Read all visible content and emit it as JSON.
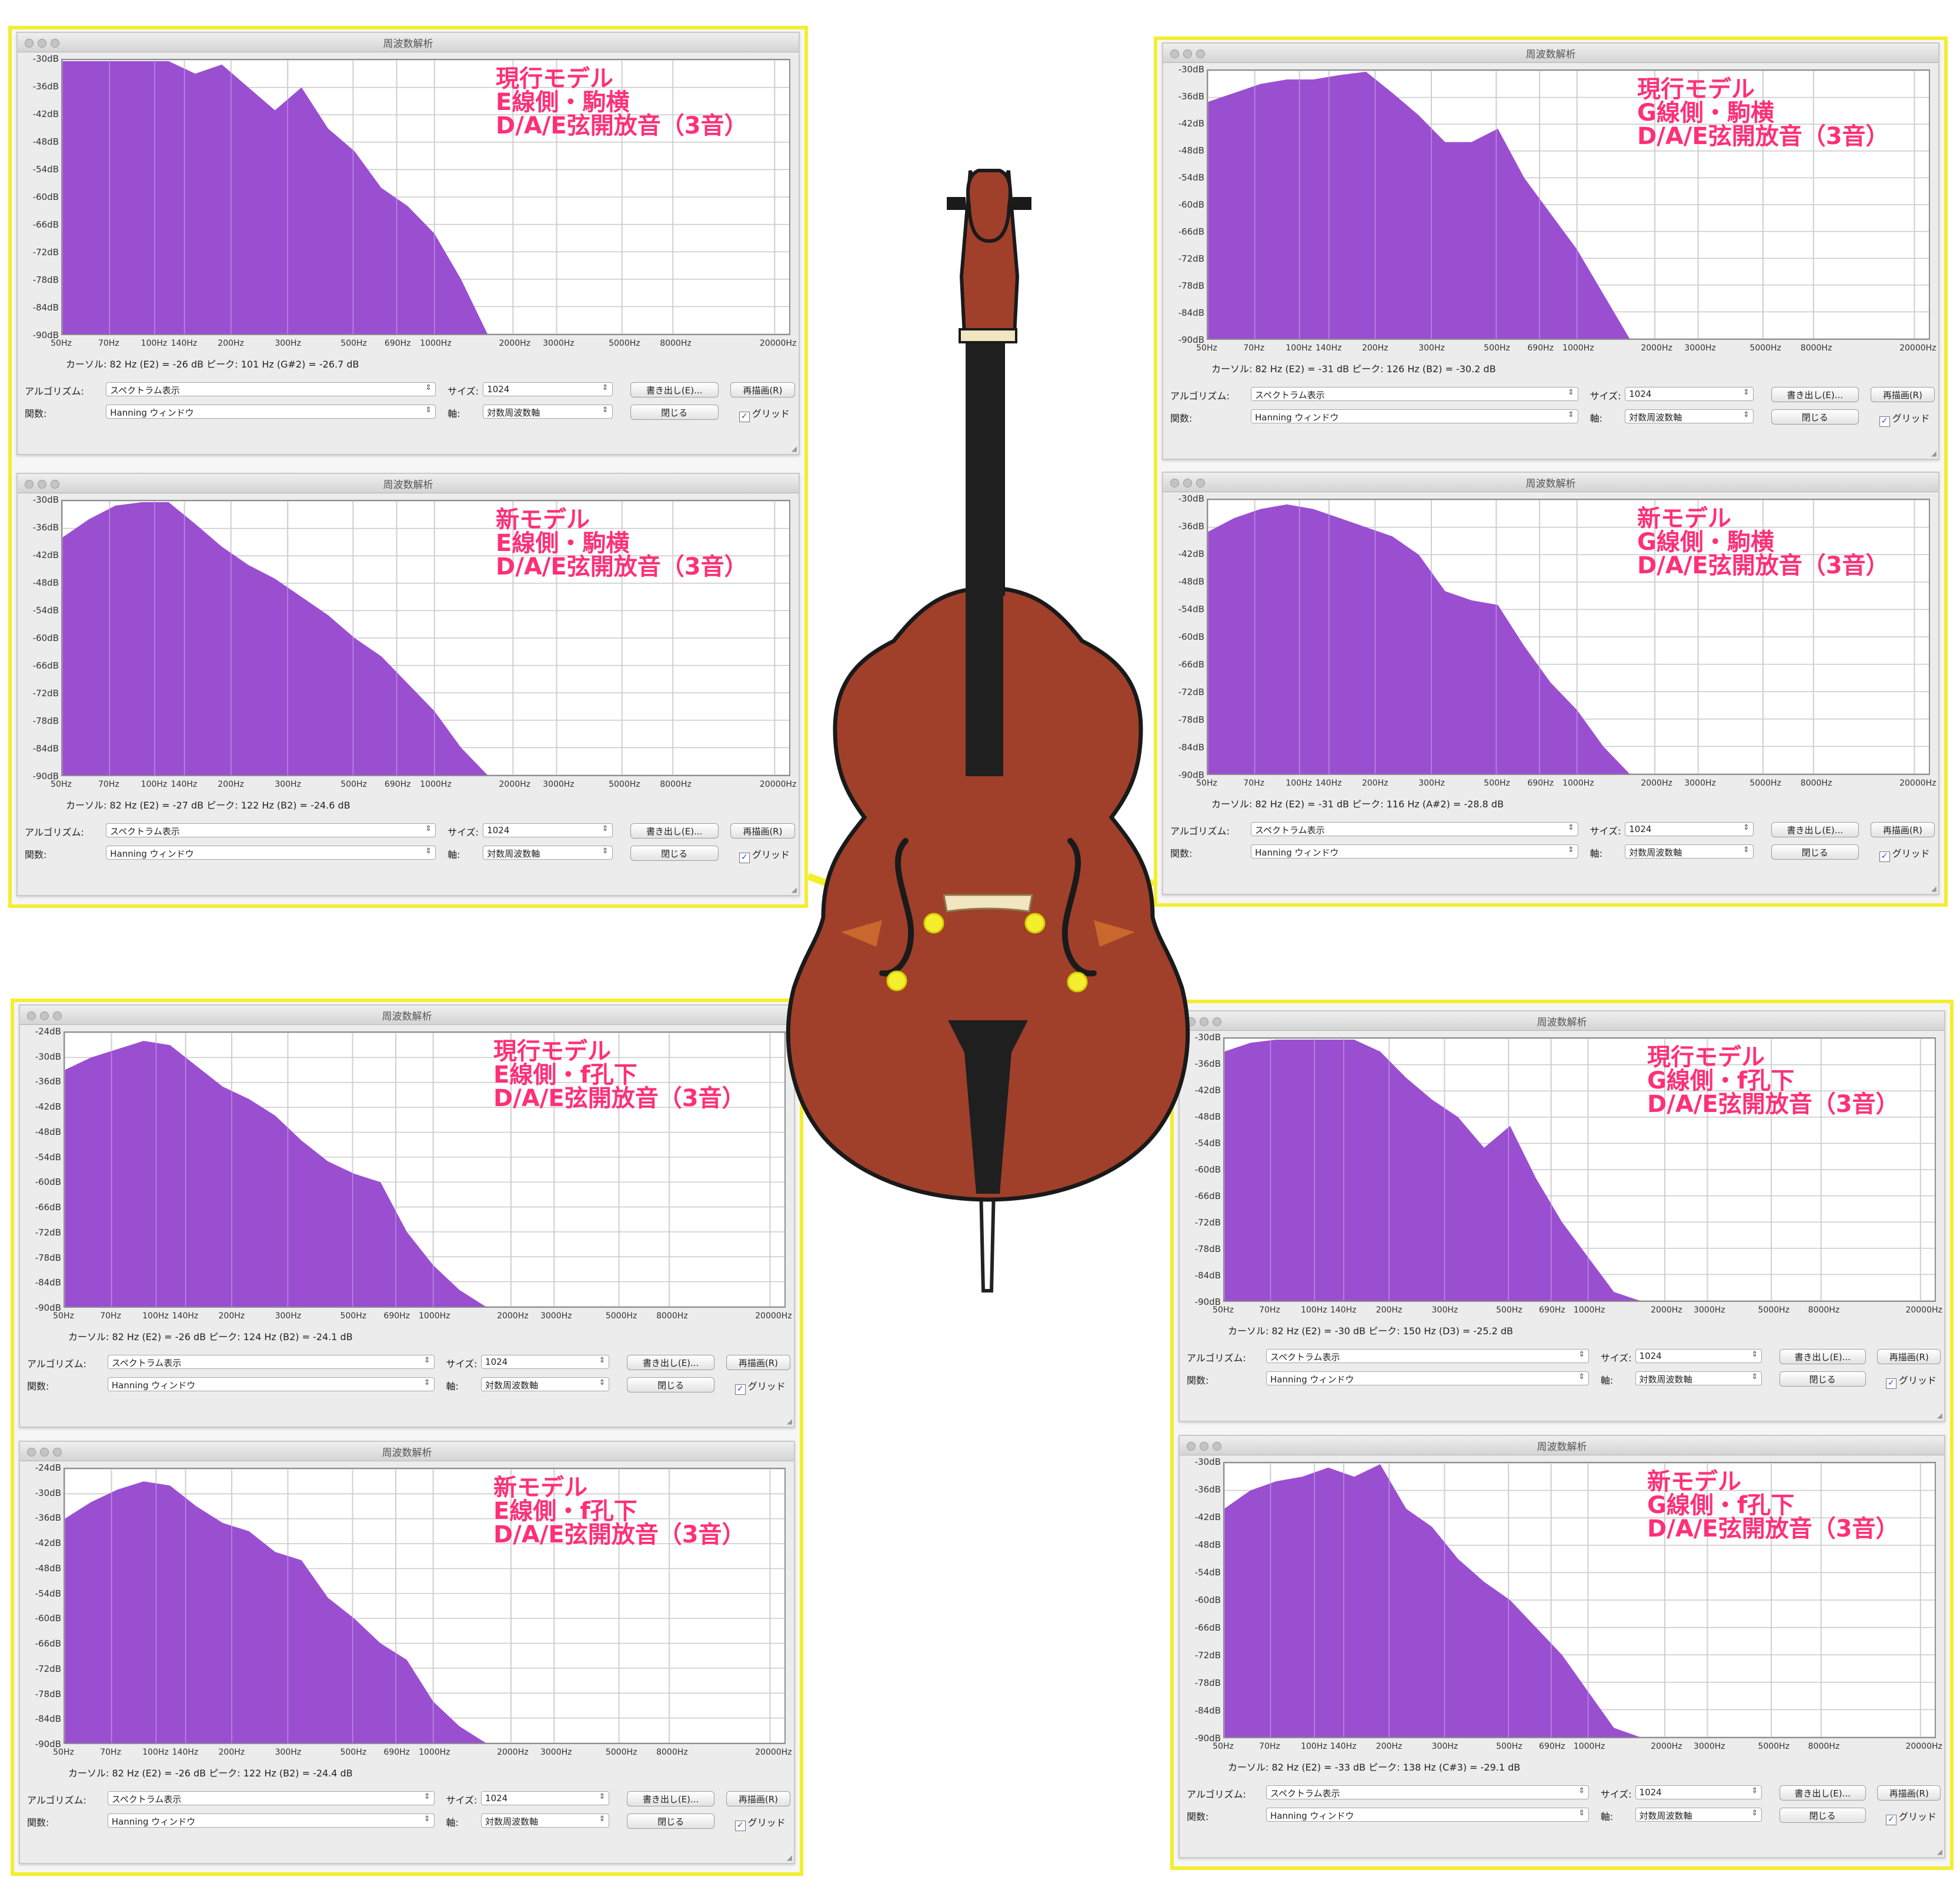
{
  "window_title": "周波数解析",
  "y_ticks": [
    "-30dB",
    "-36dB",
    "-42dB",
    "-48dB",
    "-54dB",
    "-60dB",
    "-66dB",
    "-72dB",
    "-78dB",
    "-84dB",
    "-90dB"
  ],
  "y_ticks_alt": [
    "-24dB",
    "-30dB",
    "-36dB",
    "-42dB",
    "-48dB",
    "-54dB",
    "-60dB",
    "-66dB",
    "-72dB",
    "-78dB",
    "-84dB",
    "-90dB"
  ],
  "x_ticks": [
    "50Hz",
    "70Hz",
    "100Hz",
    "140Hz",
    "200Hz",
    "300Hz",
    "500Hz",
    "690Hz",
    "1000Hz",
    "2000Hz",
    "3000Hz",
    "5000Hz",
    "8000Hz",
    "20000Hz"
  ],
  "controls": {
    "algorithm_label": "アルゴリズム:",
    "algorithm_value": "スペクトラム表示",
    "function_label": "関数:",
    "function_value": "Hanning ウィンドウ",
    "size_label": "サイズ:",
    "size_value": "1024",
    "axis_label": "軸:",
    "axis_value": "対数周波数軸",
    "export_button": "書き出し(E)...",
    "replot_button": "再描画(R)",
    "close_button": "閉じる",
    "grid_label": "グリッド"
  },
  "panels": [
    {
      "annotation": [
        "現行モデル",
        "E線側・駒横",
        "D/A/E弦開放音（3音）"
      ],
      "cursor": "カーソル: 82 Hz (E2) = -26 dB    ピーク: 101 Hz (G#2) = -26.7 dB",
      "y_scale": "normal",
      "spectrum_shape": [
        -30,
        -29,
        -28,
        -27,
        -30,
        -33,
        -31,
        -36,
        -41,
        -36,
        -45,
        -50,
        -58,
        -62,
        -68,
        -78,
        -90
      ]
    },
    {
      "annotation": [
        "新モデル",
        "E線側・駒横",
        "D/A/E弦開放音（3音）"
      ],
      "cursor": "カーソル: 82 Hz (E2) = -27 dB    ピーク: 122 Hz (B2) = -24.6 dB",
      "y_scale": "normal",
      "spectrum_shape": [
        -38,
        -34,
        -31,
        -29,
        -30,
        -35,
        -40,
        -44,
        -47,
        -51,
        -55,
        -60,
        -64,
        -70,
        -76,
        -84,
        -90
      ]
    },
    {
      "annotation": [
        "現行モデル",
        "G線側・駒横",
        "D/A/E弦開放音（3音）"
      ],
      "cursor": "カーソル: 82 Hz (E2) = -31 dB    ピーク: 126 Hz (B2) = -30.2 dB",
      "y_scale": "normal",
      "spectrum_shape": [
        -37,
        -35,
        -33,
        -32,
        -32,
        -31,
        -29,
        -35,
        -40,
        -46,
        -46,
        -43,
        -54,
        -62,
        -70,
        -80,
        -90
      ]
    },
    {
      "annotation": [
        "新モデル",
        "G線側・駒横",
        "D/A/E弦開放音（3音）"
      ],
      "cursor": "カーソル: 82 Hz (E2) = -31 dB    ピーク: 116 Hz (A#2) = -28.8 dB",
      "y_scale": "normal",
      "spectrum_shape": [
        -37,
        -34,
        -32,
        -31,
        -32,
        -34,
        -36,
        -38,
        -42,
        -50,
        -52,
        -53,
        -62,
        -70,
        -76,
        -84,
        -90
      ]
    },
    {
      "annotation": [
        "現行モデル",
        "E線側・f孔下",
        "D/A/E弦開放音（3音）"
      ],
      "cursor": "カーソル: 82 Hz (E2) = -26 dB    ピーク: 124 Hz (B2) = -24.1 dB",
      "y_scale": "alt",
      "spectrum_shape": [
        -33,
        -30,
        -28,
        -26,
        -27,
        -32,
        -37,
        -40,
        -44,
        -50,
        -55,
        -58,
        -60,
        -72,
        -80,
        -86,
        -90
      ]
    },
    {
      "annotation": [
        "新モデル",
        "E線側・f孔下",
        "D/A/E弦開放音（3音）"
      ],
      "cursor": "カーソル: 82 Hz (E2) = -26 dB    ピーク: 122 Hz (B2) = -24.4 dB",
      "y_scale": "alt",
      "spectrum_shape": [
        -36,
        -32,
        -29,
        -27,
        -28,
        -33,
        -37,
        -39,
        -44,
        -46,
        -55,
        -60,
        -66,
        -70,
        -80,
        -86,
        -90
      ]
    },
    {
      "annotation": [
        "現行モデル",
        "G線側・f孔下",
        "D/A/E弦開放音（3音）"
      ],
      "cursor": "カーソル: 82 Hz (E2) = -30 dB    ピーク: 150 Hz (D3) = -25.2 dB",
      "y_scale": "normal",
      "spectrum_shape": [
        -33,
        -31,
        -30,
        -29,
        -27,
        -28,
        -33,
        -39,
        -44,
        -48,
        -55,
        -50,
        -62,
        -72,
        -80,
        -88,
        -90
      ]
    },
    {
      "annotation": [
        "新モデル",
        "G線側・f孔下",
        "D/A/E弦開放音（3音）"
      ],
      "cursor": "カーソル: 82 Hz (E2) = -33 dB    ピーク: 138 Hz (C#3) = -29.1 dB",
      "y_scale": "normal",
      "spectrum_shape": [
        -40,
        -36,
        -34,
        -33,
        -31,
        -33,
        -29,
        -40,
        -44,
        -51,
        -56,
        -60,
        -66,
        -72,
        -80,
        -88,
        -90
      ]
    }
  ],
  "colors": {
    "spectrum": "#9a4fd1",
    "highlight": "#f3ee2e",
    "annotation": "#ff2f78",
    "bass_body": "#a0402a"
  }
}
